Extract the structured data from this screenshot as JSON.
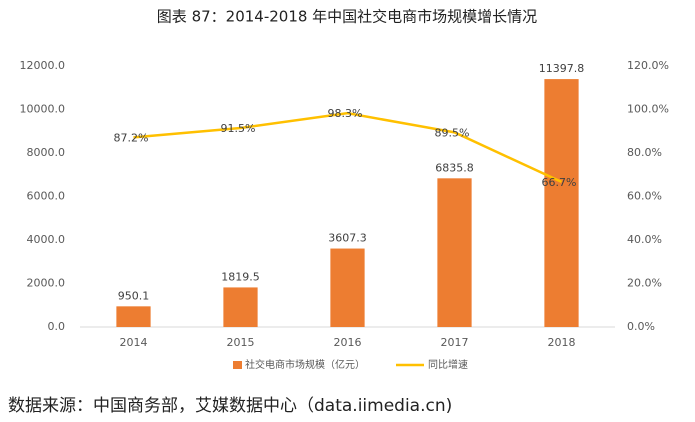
{
  "chart_data": {
    "type": "bar",
    "title": "图表 87：2014-2018 年中国社交电商市场规模增长情况",
    "source": "数据来源：中国商务部，艾媒数据中心（data.iimedia.cn)",
    "categories": [
      "2014",
      "2015",
      "2016",
      "2017",
      "2018"
    ],
    "series": [
      {
        "name": "社交电商市场规模（亿元）",
        "color": "#ed7d31",
        "values": [
          950.1,
          1819.5,
          3607.3,
          6835.8,
          11397.8
        ]
      },
      {
        "name": "同比增速",
        "color": "#ffc000",
        "type": "line",
        "axis": "y2",
        "values": [
          87.2,
          91.5,
          98.3,
          89.5,
          66.7
        ],
        "value_labels": [
          "87.2%",
          "91.5%",
          "98.3%",
          "89.5%",
          "66.7%"
        ]
      }
    ],
    "ylim": [
      0,
      12000
    ],
    "yticks": [
      {
        "value": 0,
        "label": "0.0"
      },
      {
        "value": 2000,
        "label": "2000.0"
      },
      {
        "value": 4000,
        "label": "4000.0"
      },
      {
        "value": 6000,
        "label": "6000.0"
      },
      {
        "value": 8000,
        "label": "8000.0"
      },
      {
        "value": 10000,
        "label": "10000.0"
      },
      {
        "value": 12000,
        "label": "12000.0"
      }
    ],
    "y2lim": [
      0,
      120
    ],
    "y2ticks": [
      {
        "value": 0,
        "label": "0.0%"
      },
      {
        "value": 20,
        "label": "20.0%"
      },
      {
        "value": 40,
        "label": "40.0%"
      },
      {
        "value": 60,
        "label": "60.0%"
      },
      {
        "value": 80,
        "label": "80.0%"
      },
      {
        "value": 100,
        "label": "100.0%"
      },
      {
        "value": 120,
        "label": "120.0%"
      }
    ],
    "grid": false,
    "legend": "bottom"
  }
}
